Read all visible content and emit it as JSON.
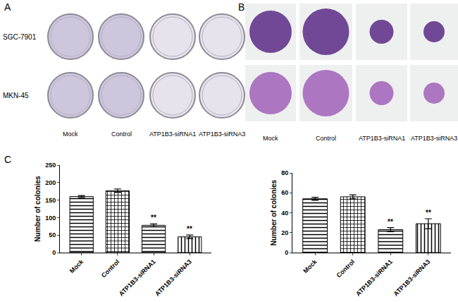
{
  "figure": {
    "panels": [
      {
        "label": "A",
        "row_labels": [
          "SGC-7901",
          "MKN-45"
        ],
        "column_labels": [
          "Mock",
          "Control",
          "ATP1B3-siRNA1",
          "ATP1B3-siRNA3"
        ]
      },
      {
        "label": "B",
        "column_labels": [
          "Mock",
          "Control",
          "ATP1B3-siRNA1",
          "ATP1B3-siRNA3"
        ]
      },
      {
        "label": "C"
      }
    ]
  },
  "chart_data": [
    {
      "type": "bar",
      "categories": [
        "Mock",
        "Control",
        "ATP1B3-siRNA1",
        "ATP1B3-siRNA3"
      ],
      "values": [
        160,
        177,
        78,
        45
      ],
      "errors": [
        3,
        5,
        4,
        5
      ],
      "color": "#ffffff",
      "ylabel": "Number of colonies",
      "ylim": [
        0,
        250
      ],
      "yticks": [
        0,
        50,
        100,
        150,
        200,
        250
      ],
      "grid": false,
      "annotations": [
        {
          "category": "ATP1B3-siRNA1",
          "text": "**"
        },
        {
          "category": "ATP1B3-siRNA3",
          "text": "**"
        }
      ]
    },
    {
      "type": "bar",
      "categories": [
        "Mock",
        "Control",
        "ATP1B3-siRNA1",
        "ATP1B3-siRNA3"
      ],
      "values": [
        54,
        56,
        23,
        29
      ],
      "errors": [
        1.5,
        2,
        2,
        5
      ],
      "color": "#ffffff",
      "ylabel": "Number of colonies",
      "ylim": [
        0,
        80
      ],
      "yticks": [
        0,
        20,
        40,
        60,
        80
      ],
      "grid": false,
      "annotations": [
        {
          "category": "ATP1B3-siRNA1",
          "text": "**"
        },
        {
          "category": "ATP1B3-siRNA3",
          "text": "**"
        }
      ]
    }
  ]
}
